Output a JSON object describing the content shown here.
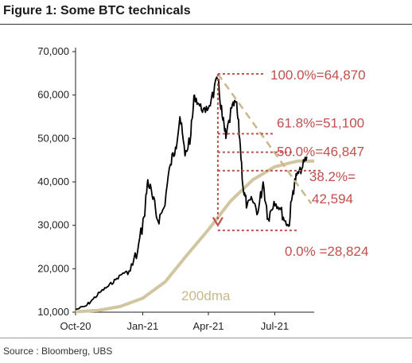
{
  "title": "Figure 1: Some BTC technicals",
  "source": "Source : Bloomberg, UBS",
  "colors": {
    "price": "#000000",
    "dma": "#d2c6a0",
    "fib": "#c0504d",
    "trend": "#c8b98a"
  },
  "chart_data": {
    "type": "line",
    "xlabel": "",
    "ylabel": "",
    "ylim": [
      10000,
      70000
    ],
    "yticks": [
      "10,000",
      "20,000",
      "30,000",
      "40,000",
      "50,000",
      "60,000",
      "70,000"
    ],
    "ytick_values": [
      10000,
      20000,
      30000,
      40000,
      50000,
      60000,
      70000
    ],
    "xtick_labels": [
      "Oct-20",
      "Jan-21",
      "Apr-21",
      "Jul-21"
    ],
    "xtick_dates": [
      "2020-10-01",
      "2021-01-01",
      "2021-04-01",
      "2021-07-01"
    ],
    "xlim": [
      "2020-10-01",
      "2021-08-24"
    ],
    "grid": false,
    "series": [
      {
        "name": "",
        "role": "price",
        "x": [
          "2020-10-01",
          "2020-10-15",
          "2020-10-25",
          "2020-11-05",
          "2020-11-15",
          "2020-11-25",
          "2020-12-05",
          "2020-12-15",
          "2020-12-25",
          "2021-01-03",
          "2021-01-08",
          "2021-01-15",
          "2021-01-22",
          "2021-01-30",
          "2021-02-08",
          "2021-02-15",
          "2021-02-21",
          "2021-02-28",
          "2021-03-08",
          "2021-03-13",
          "2021-03-20",
          "2021-03-28",
          "2021-04-05",
          "2021-04-14",
          "2021-04-20",
          "2021-04-25",
          "2021-05-03",
          "2021-05-09",
          "2021-05-14",
          "2021-05-19",
          "2021-05-24",
          "2021-05-31",
          "2021-06-08",
          "2021-06-15",
          "2021-06-22",
          "2021-06-30",
          "2021-07-08",
          "2021-07-15",
          "2021-07-20",
          "2021-07-26",
          "2021-07-31",
          "2021-08-07",
          "2021-08-14"
        ],
        "y": [
          10600,
          11400,
          13000,
          14800,
          16000,
          17500,
          19000,
          19500,
          24000,
          32000,
          40500,
          36000,
          31000,
          34000,
          44000,
          48000,
          55000,
          46000,
          51000,
          60000,
          57500,
          56000,
          59000,
          63500,
          55000,
          50000,
          57000,
          58500,
          50000,
          38000,
          34500,
          36000,
          33000,
          40000,
          31500,
          35500,
          34000,
          31000,
          29800,
          38000,
          41500,
          43000,
          45800
        ]
      },
      {
        "name": "200dma",
        "role": "200dma",
        "x": [
          "2020-10-01",
          "2020-11-01",
          "2020-12-01",
          "2021-01-01",
          "2021-02-01",
          "2021-03-01",
          "2021-04-01",
          "2021-05-01",
          "2021-06-01",
          "2021-07-01",
          "2021-08-01",
          "2021-08-24"
        ],
        "y": [
          10100,
          10400,
          11300,
          13200,
          17000,
          22800,
          29000,
          35500,
          40500,
          43500,
          44800,
          44800
        ]
      }
    ],
    "fib_levels": [
      {
        "label": "100.0%=64,870",
        "value": 64870
      },
      {
        "label": "61.8%=51,100",
        "value": 51100
      },
      {
        "label": "50.0%=46,847",
        "value": 46847
      },
      {
        "label": "38.2%=",
        "label2": "42,594",
        "value": 42594
      },
      {
        "label": "0.0% =28,824",
        "value": 28824
      }
    ],
    "trendlines": [
      {
        "x": [
          "2021-04-14",
          "2021-08-20"
        ],
        "y": [
          64870,
          35000
        ]
      }
    ],
    "retracement_arrow": {
      "x": "2021-04-14",
      "from": 64870,
      "to": 30000
    },
    "annotations": [
      {
        "text": "200dma"
      }
    ]
  }
}
